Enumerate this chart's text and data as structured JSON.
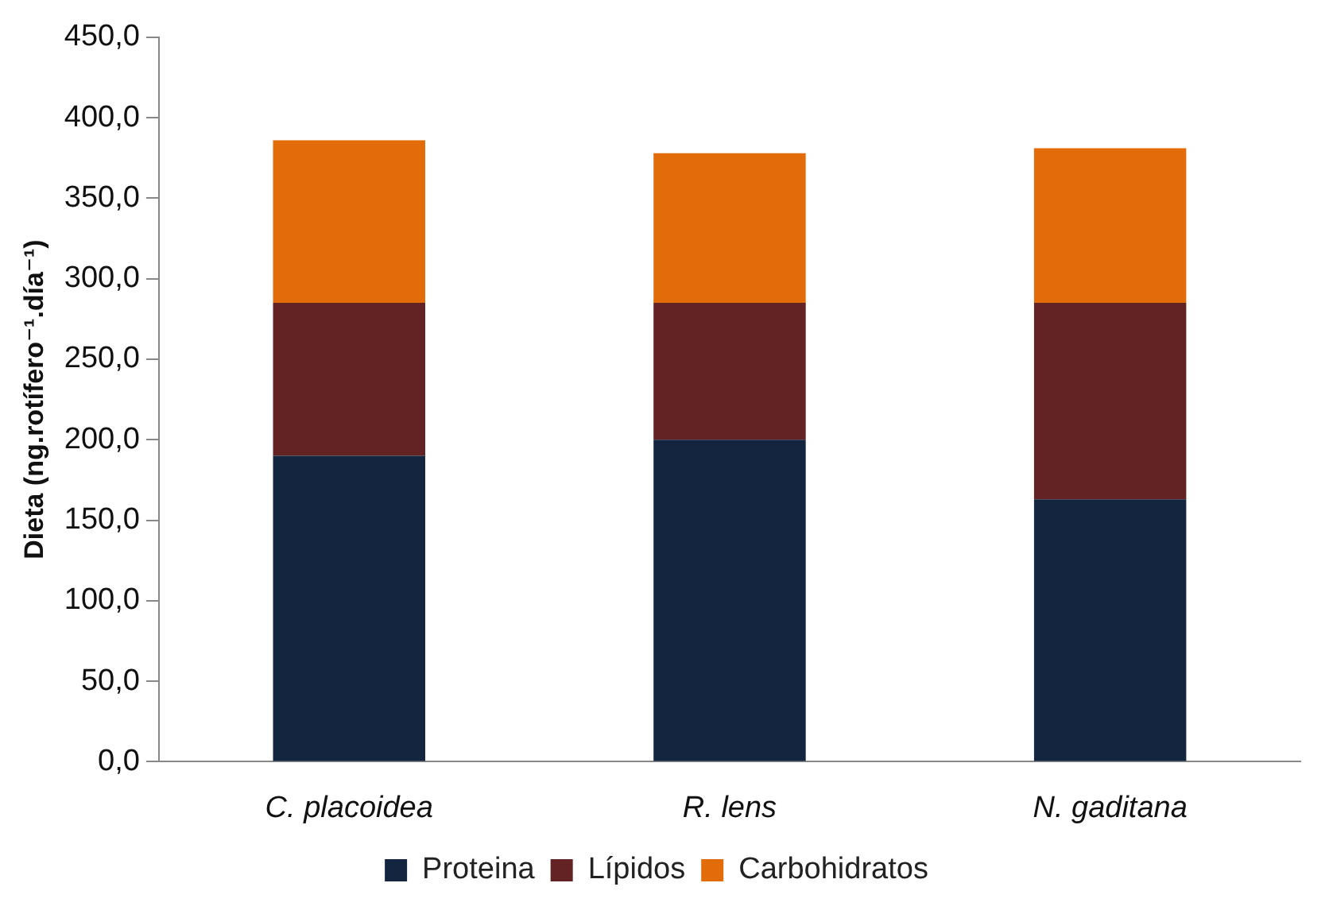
{
  "chart_data": {
    "type": "bar",
    "stacked": true,
    "ylabel": "Dieta (ng.rotífero⁻¹.día⁻¹)",
    "categories": [
      "C. placoidea",
      "R. lens",
      "N. gaditana"
    ],
    "series": [
      {
        "name": "Proteina",
        "color": "#13253f",
        "values": [
          190,
          200,
          163
        ]
      },
      {
        "name": "Lípidos",
        "color": "#632325",
        "values": [
          95,
          85,
          122
        ]
      },
      {
        "name": "Carbohidratos",
        "color": "#e36c0a",
        "values": [
          101,
          93,
          96
        ]
      }
    ],
    "ylim": [
      0,
      450
    ],
    "yticks": [
      {
        "value": 0,
        "label": "0,0"
      },
      {
        "value": 50,
        "label": "50,0"
      },
      {
        "value": 100,
        "label": "100,0"
      },
      {
        "value": 150,
        "label": "150,0"
      },
      {
        "value": 200,
        "label": "200,0"
      },
      {
        "value": 250,
        "label": "250,0"
      },
      {
        "value": 300,
        "label": "300,0"
      },
      {
        "value": 350,
        "label": "350,0"
      },
      {
        "value": 400,
        "label": "400,0"
      },
      {
        "value": 450,
        "label": "450,0"
      }
    ],
    "grid": false,
    "legend": "bottom"
  }
}
